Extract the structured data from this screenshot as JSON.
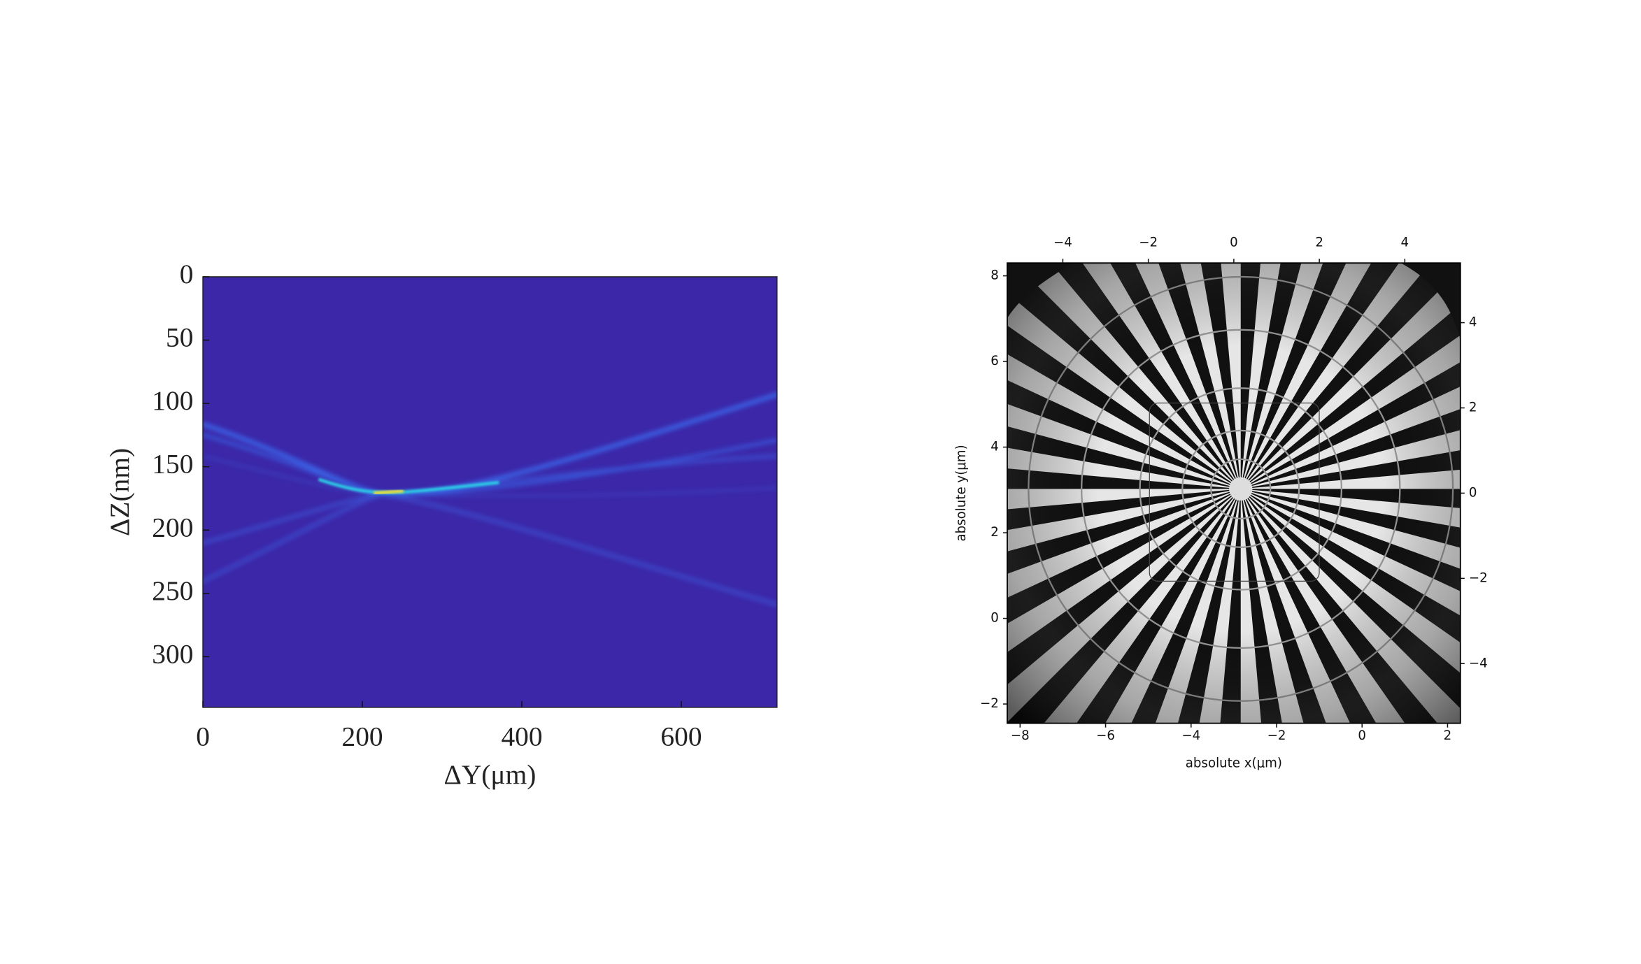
{
  "chart_data": [
    {
      "type": "image",
      "xlabel": "ΔY(μm)",
      "ylabel": "ΔZ(nm)",
      "xlim": [
        0,
        720
      ],
      "ylim": [
        0,
        340
      ],
      "y_inverted": true,
      "xticks": [
        0,
        200,
        400,
        600
      ],
      "yticks": [
        0,
        50,
        100,
        150,
        200,
        250,
        300
      ]
    },
    {
      "type": "image",
      "xlabel": "absolute x(μm)",
      "ylabel": "absolute y(μm)",
      "xlim": [
        -8.3,
        2.3
      ],
      "ylim": [
        -2.45,
        8.3
      ],
      "xticks": [
        {
          "value": -8,
          "label": "−8"
        },
        {
          "value": -6,
          "label": "−6"
        },
        {
          "value": -4,
          "label": "−4"
        },
        {
          "value": -2,
          "label": "−2"
        },
        0,
        2
      ],
      "yticks": [
        {
          "value": -2,
          "label": "−2"
        },
        0,
        2,
        4,
        6,
        8
      ],
      "x2lim": [
        -5.3,
        5.3
      ],
      "x2ticks": [
        {
          "value": -4,
          "label": "−4"
        },
        {
          "value": -2,
          "label": "−2"
        },
        0,
        2,
        4
      ],
      "y2lim": [
        -5.4,
        5.4
      ],
      "y2ticks": [
        {
          "value": -4,
          "label": "−4"
        },
        {
          "value": -2,
          "label": "−2"
        },
        0,
        2,
        4
      ]
    }
  ]
}
